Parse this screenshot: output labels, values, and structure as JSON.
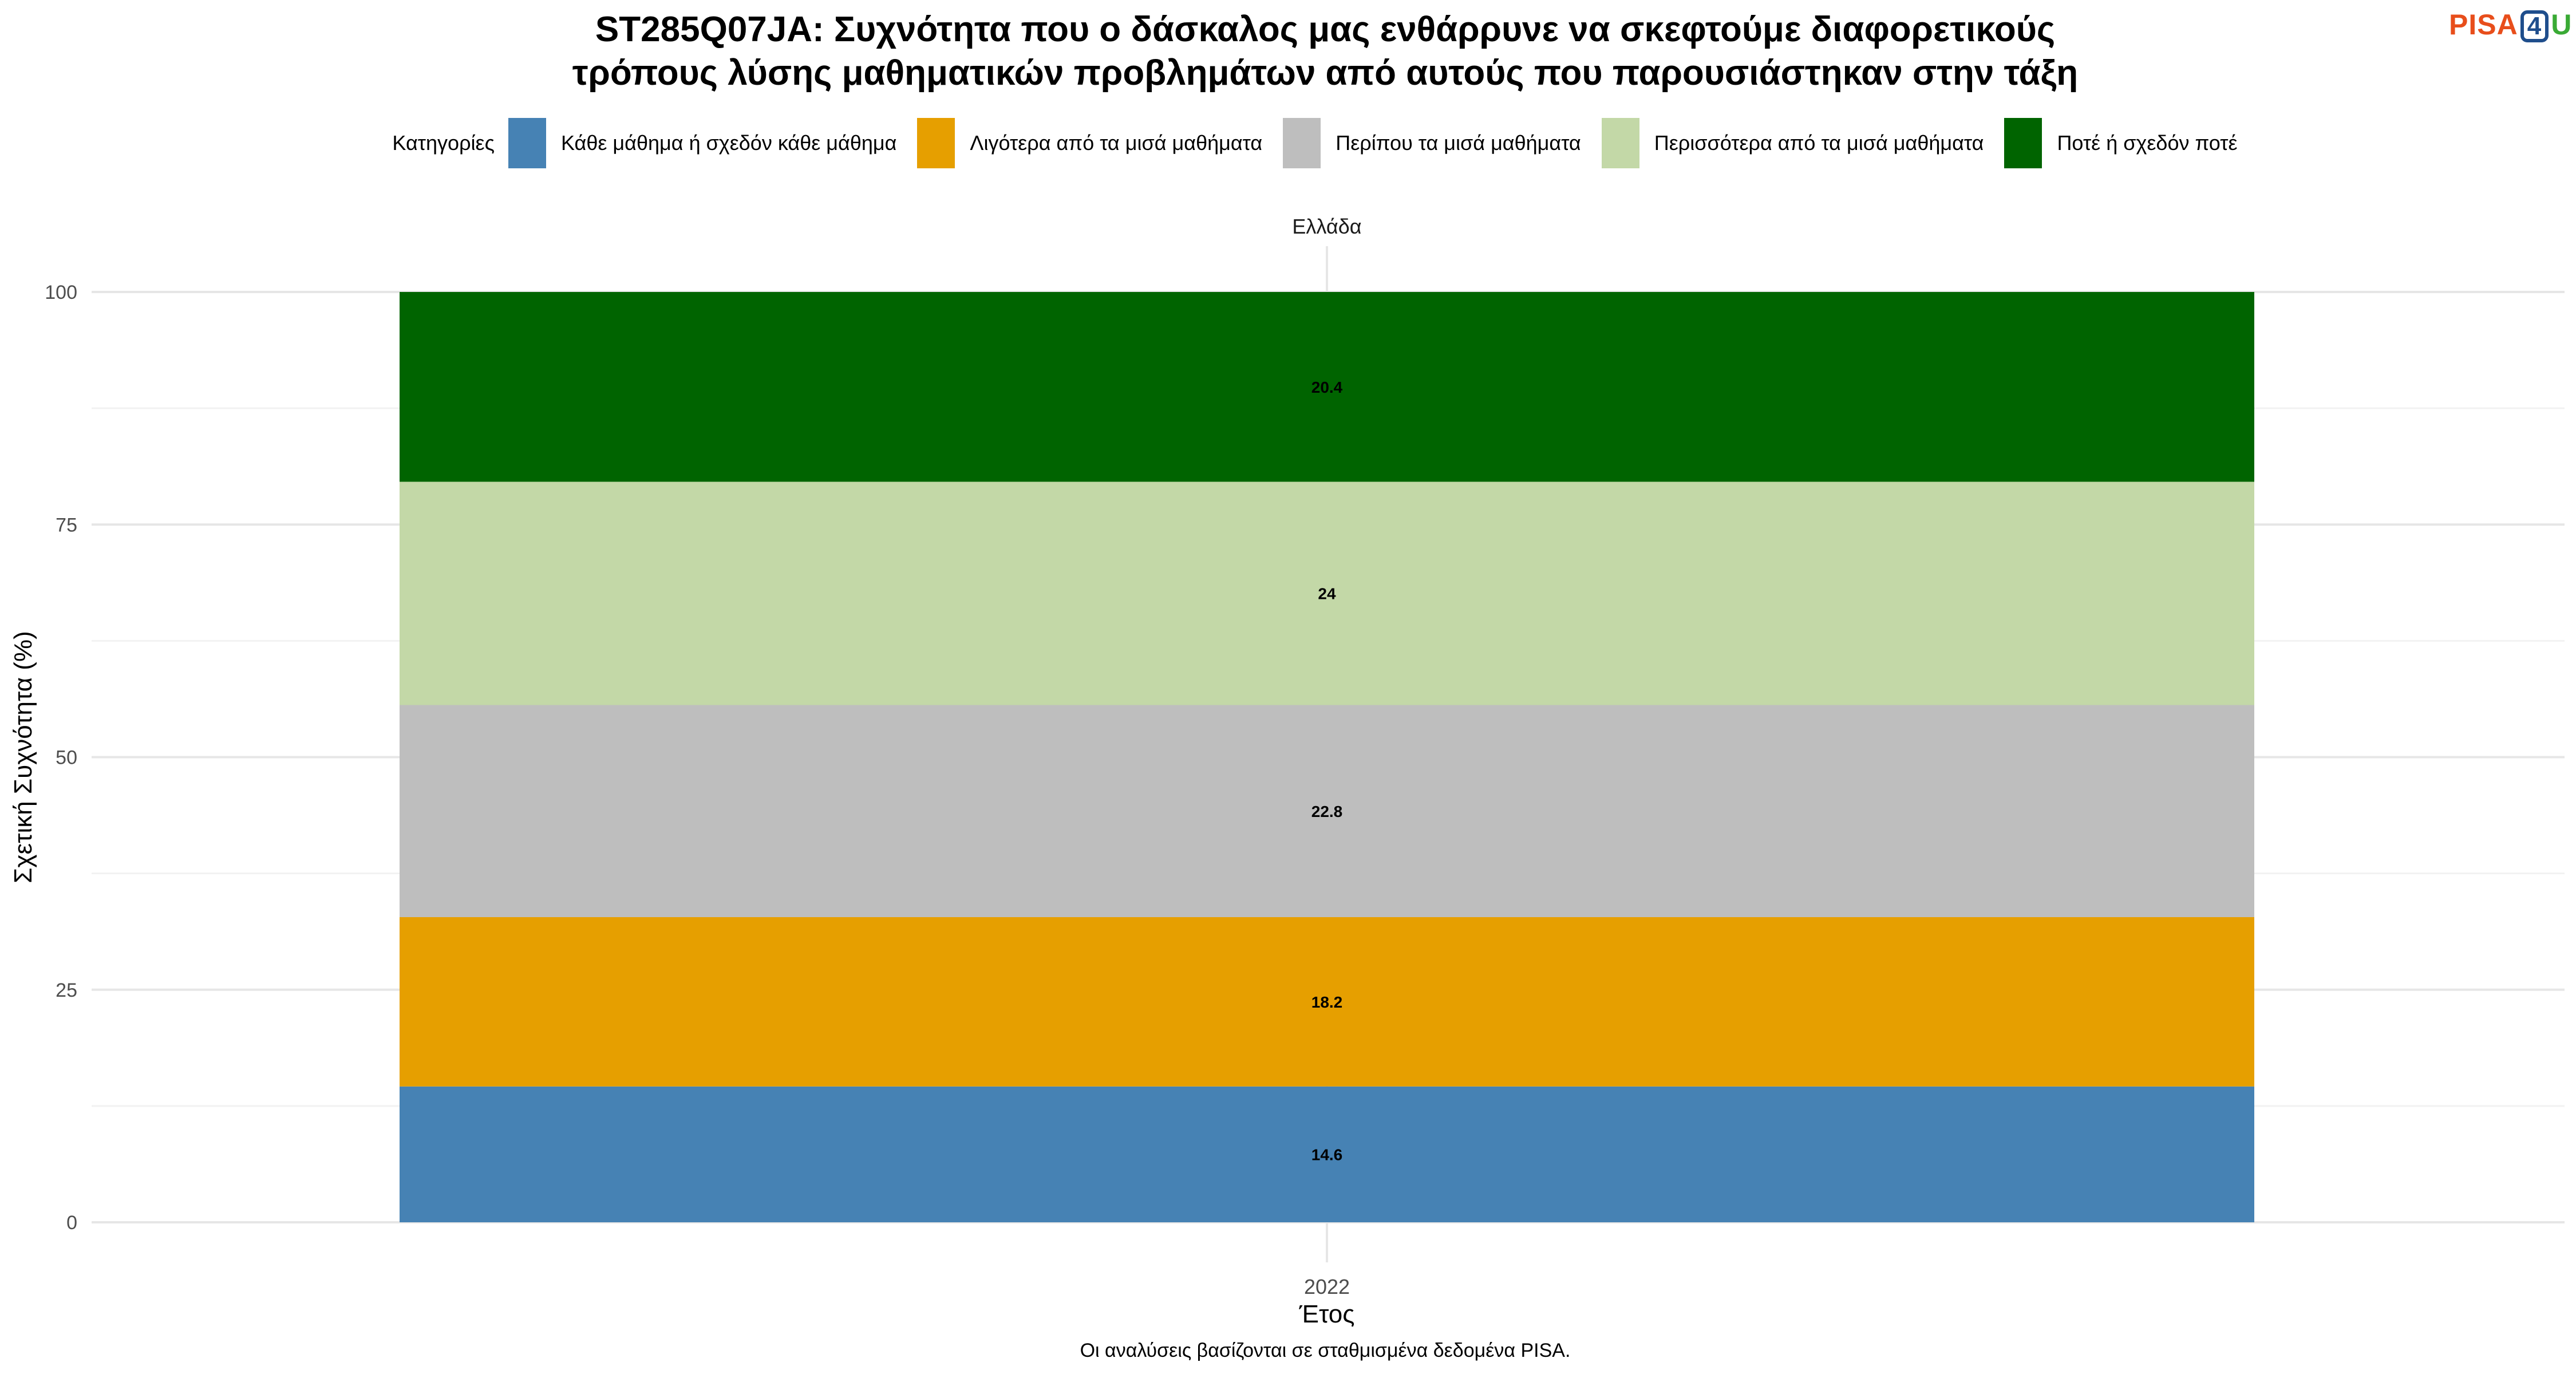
{
  "title_lines": [
    "ST285Q07JA: Συχνότητα που ο δάσκαλος μας ενθάρρυνε να σκεφτούμε διαφορετικούς",
    "τρόπους λύσης μαθηματικών προβλημάτων από αυτούς που παρουσιάστηκαν στην τάξη"
  ],
  "logo": {
    "part1": "PISA",
    "part2": "4",
    "part3": "U"
  },
  "caption": "Οι αναλύσεις βασίζονται σε σταθμισμένα δεδομένα PISA.",
  "chart_data": {
    "type": "bar",
    "stacked": true,
    "facet_label": "Ελλάδα",
    "categories": [
      "2022"
    ],
    "xlabel": "Έτος",
    "ylabel": "Σχετική Συχνότητα (%)",
    "ylim": [
      0,
      100
    ],
    "yticks": [
      0,
      25,
      50,
      75,
      100
    ],
    "grid": true,
    "legend_title": "Κατηγορίες",
    "legend_position": "top",
    "series": [
      {
        "name": "Κάθε μάθημα ή σχεδόν κάθε μάθημα",
        "values": [
          14.6
        ],
        "color": "#4682b4"
      },
      {
        "name": "Λιγότερα από τα μισά μαθήματα",
        "values": [
          18.2
        ],
        "color": "#e69f00"
      },
      {
        "name": "Περίπου τα μισά μαθήματα",
        "values": [
          22.8
        ],
        "color": "#bebebe"
      },
      {
        "name": "Περισσότερα από τα μισά μαθήματα",
        "values": [
          24
        ],
        "color": "#c3d8a7"
      },
      {
        "name": "Ποτέ ή σχεδόν ποτέ",
        "values": [
          20.4
        ],
        "color": "#006400"
      }
    ],
    "data_labels": [
      "14.6",
      "18.2",
      "22.8",
      "24",
      "20.4"
    ]
  }
}
